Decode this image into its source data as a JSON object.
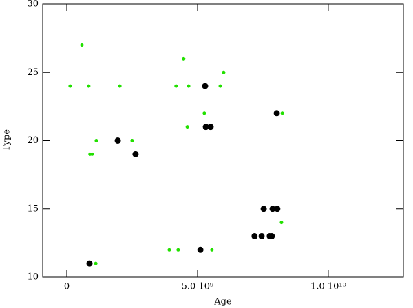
{
  "chart_data": {
    "type": "scatter",
    "x_label": "Age",
    "y_label": "Type",
    "xlim": [
      -920000000,
      12870000000
    ],
    "ylim": [
      10,
      30
    ],
    "xticks": [
      0,
      {
        "value": 5000000000,
        "label": "5.0 10⁹"
      },
      {
        "value": 10000000000,
        "label": "1.0 10¹⁰"
      }
    ],
    "yticks": [
      10,
      15,
      20,
      25,
      30
    ],
    "series": [
      {
        "color": "#22e000",
        "marker_size": 2.5,
        "x": [
          130000000,
          580000000,
          840000000,
          2030000000,
          890000000,
          970000000,
          1130000000,
          1110000000,
          2500000000,
          3920000000,
          4260000000,
          4180000000,
          4470000000,
          4660000000,
          4610000000,
          5260000000,
          5550000000,
          5870000000,
          6000000000,
          8240000000,
          8210000000
        ],
        "values": [
          24,
          27,
          24,
          24,
          19,
          19,
          20,
          11,
          20,
          12,
          12,
          24,
          26,
          24,
          21,
          22,
          12,
          24,
          25,
          22,
          14
        ]
      },
      {
        "color": "#000000",
        "marker_size": 4.5,
        "x": [
          870000000,
          1950000000,
          2630000000,
          5110000000,
          5290000000,
          5320000000,
          5500000000,
          7180000000,
          7450000000,
          7760000000,
          7840000000,
          7530000000,
          7870000000,
          8050000000,
          8030000000
        ],
        "values": [
          11,
          20,
          19,
          12,
          24,
          21,
          21,
          13,
          13,
          13,
          13,
          15,
          15,
          15,
          22
        ]
      }
    ]
  }
}
